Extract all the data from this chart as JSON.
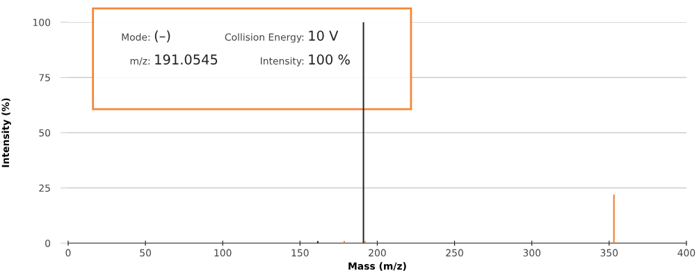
{
  "chart_data": {
    "type": "bar",
    "xlabel": "Mass (m/z)",
    "ylabel": "Intensity (%)",
    "series": [
      {
        "color": "#222222",
        "x": [
          161.5,
          191.0545
        ],
        "values": [
          1,
          100
        ]
      },
      {
        "color": "#f47920",
        "x": [
          178.6,
          192.0,
          353.1
        ],
        "values": [
          1,
          1,
          22
        ]
      }
    ],
    "xlim": [
      0,
      400
    ],
    "xticks": [
      0,
      50,
      100,
      150,
      200,
      250,
      300,
      350,
      400
    ],
    "ylim": [
      0,
      100
    ],
    "yticks": [
      0,
      25,
      50,
      75,
      100
    ],
    "grid": "y",
    "annotations": [
      "Mode:",
      "(–)",
      "Collision Energy:",
      "10 V",
      "m/z:",
      "191.0545",
      "Intensity:",
      "100 %"
    ]
  }
}
